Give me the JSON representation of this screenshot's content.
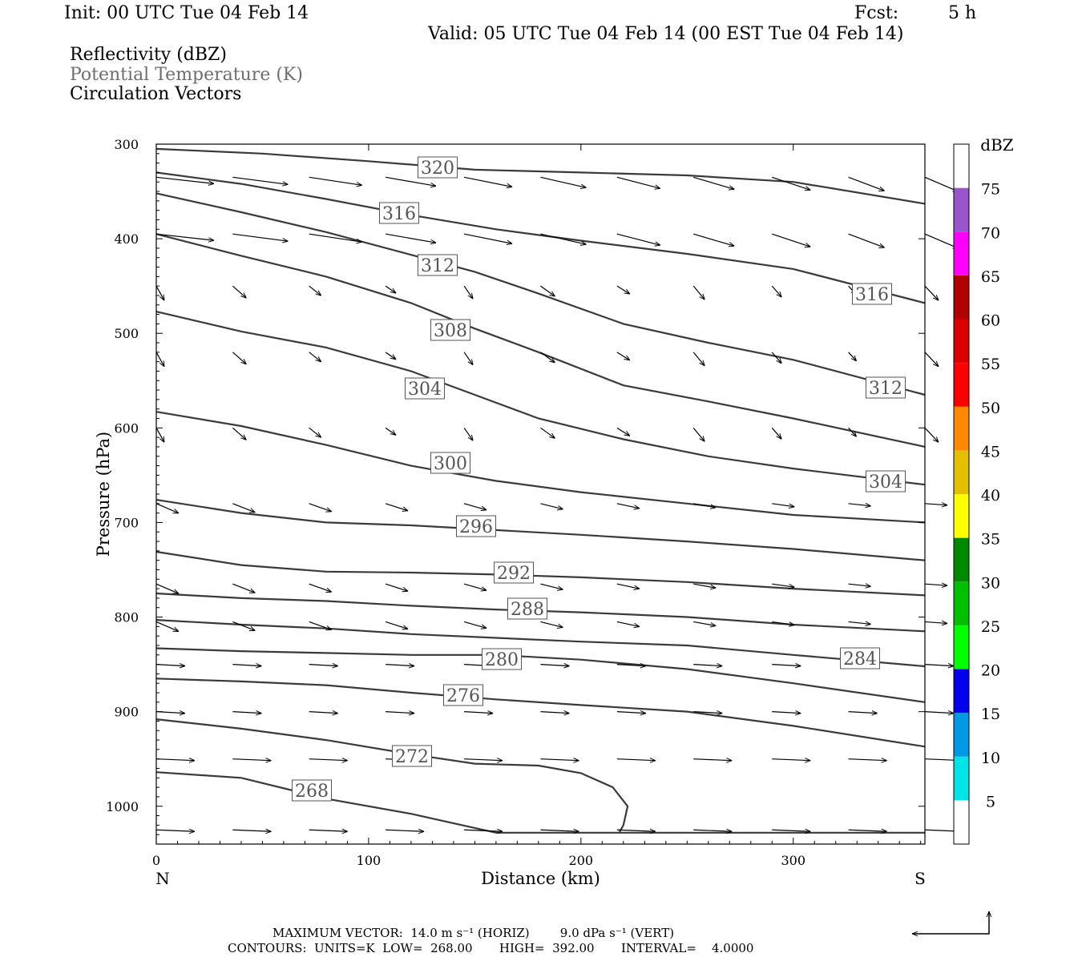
{
  "header": {
    "init": "Init: 00 UTC Tue 04 Feb 14",
    "fcst_label": "Fcst:",
    "fcst_value": "5 h",
    "valid": "Valid: 05 UTC Tue 04 Feb 14 (00 EST Tue 04 Feb 14)",
    "field1": "Reflectivity (dBZ)",
    "field2": "Potential Temperature (K)",
    "field3": "Circulation Vectors"
  },
  "chart_data": {
    "type": "line",
    "xlabel": "Distance (km)",
    "ylabel": "Pressure (hPa)",
    "xlim": [
      0,
      362
    ],
    "ylim": [
      300,
      1040
    ],
    "y_inverted": true,
    "x_ticks": [
      0,
      100,
      200,
      300
    ],
    "y_ticks": [
      300,
      400,
      500,
      600,
      700,
      800,
      900,
      1000
    ],
    "x_endpoint_labels": {
      "left": "N",
      "right": "S"
    },
    "grid": false,
    "contour_units": "K",
    "contours": [
      {
        "label": "320",
        "x": [
          0,
          50,
          100,
          150,
          200,
          250,
          300,
          362
        ],
        "y": [
          305,
          310,
          318,
          327,
          330,
          333,
          340,
          363
        ]
      },
      {
        "label": "316",
        "x": [
          0,
          40,
          80,
          120,
          160,
          200,
          250,
          300,
          362
        ],
        "y": [
          330,
          342,
          358,
          375,
          390,
          402,
          416,
          432,
          468
        ]
      },
      {
        "label": "312",
        "x": [
          0,
          40,
          80,
          120,
          150,
          180,
          220,
          260,
          300,
          362
        ],
        "y": [
          352,
          372,
          393,
          417,
          435,
          458,
          490,
          510,
          528,
          565
        ]
      },
      {
        "label": "308",
        "x": [
          0,
          40,
          80,
          120,
          150,
          180,
          220,
          260,
          300,
          362
        ],
        "y": [
          395,
          418,
          440,
          468,
          495,
          520,
          555,
          572,
          590,
          620
        ]
      },
      {
        "label": "304",
        "x": [
          0,
          40,
          80,
          120,
          150,
          180,
          220,
          260,
          300,
          362
        ],
        "y": [
          477,
          498,
          515,
          540,
          565,
          590,
          612,
          630,
          643,
          660
        ]
      },
      {
        "label": "300",
        "x": [
          0,
          40,
          80,
          120,
          160,
          200,
          250,
          300,
          362
        ],
        "y": [
          583,
          598,
          618,
          640,
          656,
          668,
          680,
          692,
          700
        ]
      },
      {
        "label": "296",
        "x": [
          0,
          40,
          80,
          120,
          160,
          200,
          250,
          300,
          362
        ],
        "y": [
          676,
          690,
          700,
          703,
          708,
          713,
          720,
          728,
          740
        ]
      },
      {
        "label": "292",
        "x": [
          0,
          40,
          80,
          120,
          160,
          200,
          250,
          300,
          362
        ],
        "y": [
          731,
          745,
          752,
          753,
          755,
          758,
          763,
          770,
          777
        ]
      },
      {
        "label": "288",
        "x": [
          0,
          40,
          80,
          120,
          160,
          200,
          250,
          300,
          362
        ],
        "y": [
          775,
          780,
          783,
          788,
          792,
          795,
          800,
          808,
          815
        ]
      },
      {
        "label": "284",
        "x": [
          0,
          40,
          80,
          120,
          160,
          200,
          250,
          300,
          362
        ],
        "y": [
          803,
          808,
          812,
          818,
          822,
          826,
          830,
          840,
          852
        ]
      },
      {
        "label": "280",
        "x": [
          0,
          40,
          80,
          120,
          160,
          200,
          250,
          300,
          362
        ],
        "y": [
          833,
          836,
          838,
          840,
          840,
          845,
          855,
          870,
          890
        ]
      },
      {
        "label": "276",
        "x": [
          0,
          40,
          80,
          120,
          160,
          200,
          250,
          300,
          362
        ],
        "y": [
          865,
          868,
          872,
          880,
          887,
          893,
          900,
          915,
          937
        ]
      },
      {
        "label": "272",
        "x": [
          0,
          40,
          80,
          120,
          150,
          180,
          200,
          215,
          222,
          220,
          218
        ],
        "y": [
          908,
          918,
          930,
          945,
          955,
          957,
          965,
          980,
          1000,
          1020,
          1028
        ]
      },
      {
        "label": "268",
        "x": [
          0,
          40,
          80,
          120,
          150,
          160,
          200,
          362
        ],
        "y": [
          964,
          970,
          992,
          1008,
          1023,
          1028,
          1028,
          1028
        ]
      }
    ],
    "colorbar": {
      "title": "dBZ",
      "labels": [
        "5",
        "10",
        "15",
        "20",
        "25",
        "30",
        "35",
        "40",
        "45",
        "50",
        "55",
        "60",
        "65",
        "70",
        "75"
      ],
      "colors": [
        "#ffffff",
        "#00e5e5",
        "#0099e5",
        "#0000ee",
        "#00ff00",
        "#00c000",
        "#008800",
        "#ffff00",
        "#e5c000",
        "#ff8800",
        "#ff0000",
        "#dd0000",
        "#b00000",
        "#ff00ff",
        "#9955cc",
        "#ffffff"
      ]
    }
  },
  "footer": {
    "line1": "MAXIMUM VECTOR:  14.0 m s⁻¹ (HORIZ)        9.0 dPa s⁻¹ (VERT)",
    "line2": "CONTOURS:  UNITS=K  LOW=  268.00       HIGH=  392.00       INTERVAL=    4.0000"
  }
}
